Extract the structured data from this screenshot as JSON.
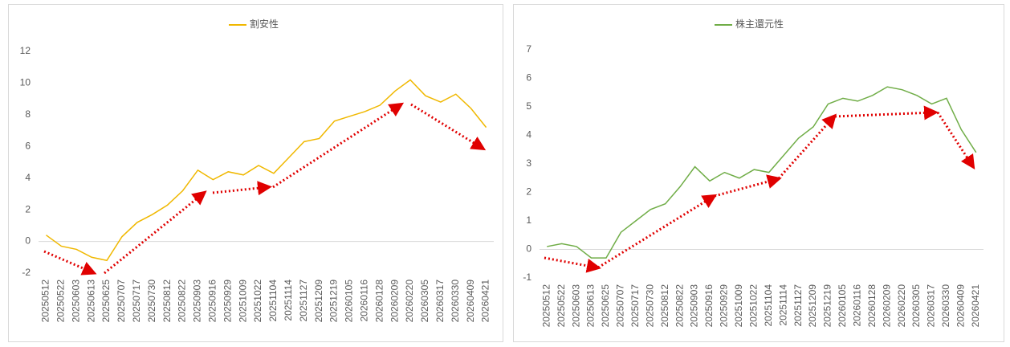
{
  "chart_data": [
    {
      "type": "line",
      "categories": [
        "20250512",
        "20250522",
        "20250603",
        "20250613",
        "20250625",
        "20250707",
        "20250717",
        "20250730",
        "20250812",
        "20250822",
        "20250903",
        "20250916",
        "20250929",
        "20251009",
        "20251022",
        "20251104",
        "20251114",
        "20251127",
        "20251209",
        "20251219",
        "20260105",
        "20260116",
        "20260128",
        "20260209",
        "20260220",
        "20260305",
        "20260317",
        "20260330",
        "20260409",
        "20260421"
      ],
      "series": [
        {
          "name": "割安性",
          "color": "#f0b800",
          "values": [
            0.4,
            -0.3,
            -0.5,
            -1.0,
            -1.2,
            0.3,
            1.2,
            1.7,
            2.3,
            3.2,
            4.5,
            3.9,
            4.4,
            4.2,
            4.8,
            4.3,
            5.3,
            6.3,
            6.5,
            7.6,
            7.9,
            8.2,
            8.6,
            9.5,
            10.2,
            9.2,
            8.8,
            9.3,
            8.4,
            7.2
          ]
        }
      ],
      "ylim": [
        -2,
        12
      ],
      "yticks": [
        -2,
        0,
        2,
        4,
        6,
        8,
        10,
        12
      ],
      "grid": false
    },
    {
      "type": "line",
      "categories": [
        "20250512",
        "20250522",
        "20250603",
        "20250613",
        "20250625",
        "20250707",
        "20250717",
        "20250730",
        "20250812",
        "20250822",
        "20250903",
        "20250916",
        "20250929",
        "20251009",
        "20251022",
        "20251104",
        "20251114",
        "20251127",
        "20251209",
        "20251219",
        "20260105",
        "20260116",
        "20260128",
        "20260209",
        "20260220",
        "20260305",
        "20260317",
        "20260330",
        "20260409",
        "20260421"
      ],
      "series": [
        {
          "name": "株主還元性",
          "color": "#70ad47",
          "values": [
            0.1,
            0.2,
            0.1,
            -0.3,
            -0.3,
            0.6,
            1.0,
            1.4,
            1.6,
            2.2,
            2.9,
            2.4,
            2.7,
            2.5,
            2.8,
            2.7,
            3.3,
            3.9,
            4.3,
            5.1,
            5.3,
            5.2,
            5.4,
            5.7,
            5.6,
            5.4,
            5.1,
            5.3,
            4.2,
            3.4
          ]
        }
      ],
      "ylim": [
        -1,
        7
      ],
      "yticks": [
        -1,
        0,
        1,
        2,
        3,
        4,
        5,
        6,
        7
      ],
      "grid": false
    }
  ]
}
